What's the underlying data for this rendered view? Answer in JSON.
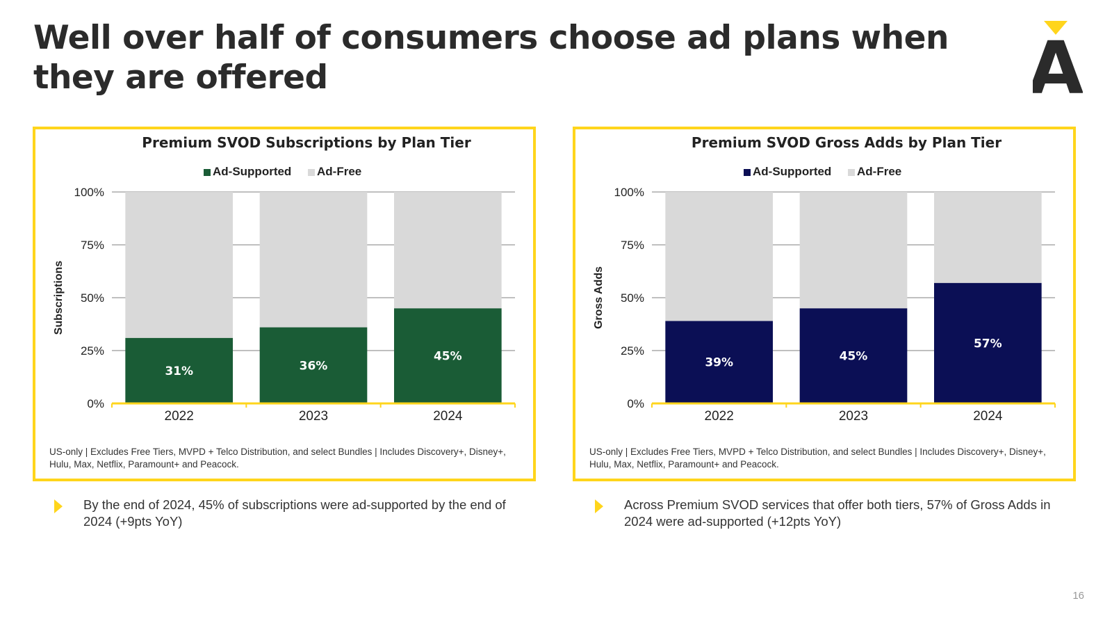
{
  "slide": {
    "title": "Well over half of consumers choose ad plans when they are offered",
    "page_number": "16",
    "brand_color": "#ffd51c",
    "logo_letter": "A"
  },
  "chart_data": [
    {
      "type": "bar",
      "stacked": true,
      "title": "Premium SVOD Subscriptions by Plan Tier",
      "ylabel": "Subscriptions",
      "xlabel": "",
      "categories": [
        "2022",
        "2023",
        "2024"
      ],
      "ylim": [
        0,
        100
      ],
      "yticks": [
        "0%",
        "25%",
        "50%",
        "75%",
        "100%"
      ],
      "legend_position": "top",
      "grid": true,
      "series": [
        {
          "name": "Ad-Supported",
          "values": [
            31,
            36,
            45
          ],
          "labels": [
            "31%",
            "36%",
            "45%"
          ],
          "color": "#1a5c36"
        },
        {
          "name": "Ad-Free",
          "values": [
            69,
            64,
            55
          ],
          "color": "#d9d9d9"
        }
      ],
      "footnote": "US-only | Excludes Free Tiers, MVPD + Telco Distribution, and select Bundles | Includes Discovery+, Disney+, Hulu, Max, Netflix, Paramount+ and Peacock."
    },
    {
      "type": "bar",
      "stacked": true,
      "title": "Premium SVOD Gross Adds by Plan Tier",
      "ylabel": "Gross Adds",
      "xlabel": "",
      "categories": [
        "2022",
        "2023",
        "2024"
      ],
      "ylim": [
        0,
        100
      ],
      "yticks": [
        "0%",
        "25%",
        "50%",
        "75%",
        "100%"
      ],
      "legend_position": "top",
      "grid": true,
      "series": [
        {
          "name": "Ad-Supported",
          "values": [
            39,
            45,
            57
          ],
          "labels": [
            "39%",
            "45%",
            "57%"
          ],
          "color": "#0b0f55"
        },
        {
          "name": "Ad-Free",
          "values": [
            61,
            55,
            43
          ],
          "color": "#d9d9d9"
        }
      ],
      "footnote": "US-only | Excludes Free Tiers, MVPD + Telco Distribution, and select Bundles | Includes Discovery+, Disney+, Hulu, Max, Netflix, Paramount+ and Peacock."
    }
  ],
  "bullets": [
    {
      "text": "By the end of 2024, 45% of subscriptions were ad-supported by the end of 2024 (+9pts YoY)"
    },
    {
      "text": "Across Premium SVOD services that offer both tiers, 57% of Gross Adds in 2024 were ad-supported (+12pts YoY)"
    }
  ]
}
